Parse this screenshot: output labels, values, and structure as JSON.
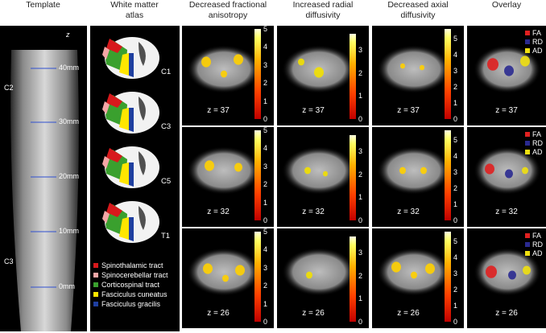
{
  "headers": {
    "template": "Template",
    "atlas": [
      "White matter",
      "atlas"
    ],
    "fa": [
      "Decreased fractional",
      "anisotropy"
    ],
    "rd": [
      "Increased radial",
      "diffusivity"
    ],
    "ad": [
      "Decreased axial",
      "diffusivity"
    ],
    "overlay": "Overlay"
  },
  "template": {
    "axis_label": "z",
    "ticks": [
      "40mm",
      "30mm",
      "20mm",
      "10mm",
      "0mm"
    ],
    "segments": [
      "C2",
      "C3"
    ]
  },
  "atlas": {
    "levels": [
      "C1",
      "C3",
      "C5",
      "T1"
    ],
    "legend": [
      {
        "label": "Spinothalamic tract",
        "color": "#d7191c"
      },
      {
        "label": "Spinocerebellar tract",
        "color": "#f4a6a6"
      },
      {
        "label": "Corticospinal tract",
        "color": "#3aa02e"
      },
      {
        "label": "Fasciculus cuneatus",
        "color": "#ffe600"
      },
      {
        "label": "Fasciculus gracilis",
        "color": "#1f3fa0"
      }
    ]
  },
  "rows": [
    {
      "z": "z = 37"
    },
    {
      "z": "z = 32"
    },
    {
      "z": "z = 26"
    }
  ],
  "colorbars": {
    "fa": [
      "5",
      "4",
      "3",
      "2",
      "1",
      "0"
    ],
    "rd": [
      "3",
      "2",
      "1",
      "0"
    ],
    "ad": [
      "5",
      "4",
      "3",
      "2",
      "1",
      "0"
    ]
  },
  "overlay_legend": [
    {
      "label": "FA",
      "color": "#e02020"
    },
    {
      "label": "RD",
      "color": "#2a2a90"
    },
    {
      "label": "AD",
      "color": "#f0e010"
    }
  ]
}
